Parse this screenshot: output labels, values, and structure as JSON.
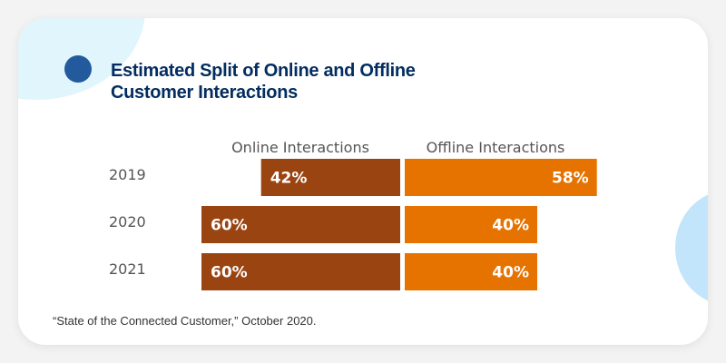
{
  "chart_data": {
    "type": "bar",
    "title": "Estimated Split of Online and Offline Customer Interactions",
    "categories": [
      "2019",
      "2020",
      "2021"
    ],
    "series": [
      {
        "name": "Online Interactions",
        "values": [
          42,
          60,
          60
        ],
        "labels": [
          "42%",
          "60%",
          "60%"
        ],
        "color": "#9a4412"
      },
      {
        "name": "Offline Interactions",
        "values": [
          58,
          40,
          40
        ],
        "labels": [
          "58%",
          "40%",
          "40%"
        ],
        "color": "#e67300"
      }
    ],
    "xlim": [
      0,
      100
    ],
    "unit": "%",
    "grid": false,
    "legend": "top"
  },
  "source": "“State of the Connected Customer,” October 2020."
}
